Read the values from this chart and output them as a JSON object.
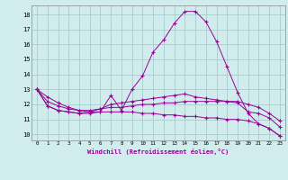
{
  "xlabel": "Windchill (Refroidissement éolien,°C)",
  "x_ticks": [
    0,
    1,
    2,
    3,
    4,
    5,
    6,
    7,
    8,
    9,
    10,
    11,
    12,
    13,
    14,
    15,
    16,
    17,
    18,
    19,
    20,
    21,
    22,
    23
  ],
  "line1": [
    13.0,
    11.9,
    11.6,
    11.5,
    11.4,
    11.4,
    11.5,
    12.6,
    11.6,
    13.0,
    13.9,
    15.5,
    16.3,
    17.4,
    18.2,
    18.2,
    17.5,
    16.2,
    14.5,
    12.8,
    11.4,
    10.7,
    10.4,
    9.9
  ],
  "line2": [
    13.0,
    11.9,
    11.6,
    11.5,
    11.4,
    11.5,
    11.7,
    12.0,
    12.1,
    12.2,
    12.3,
    12.4,
    12.5,
    12.6,
    12.7,
    12.5,
    12.4,
    12.3,
    12.2,
    12.1,
    11.5,
    11.4,
    11.1,
    10.5
  ],
  "line3": [
    13.0,
    12.2,
    11.9,
    11.7,
    11.6,
    11.6,
    11.7,
    11.8,
    11.8,
    11.9,
    12.0,
    12.0,
    12.1,
    12.1,
    12.2,
    12.2,
    12.2,
    12.2,
    12.2,
    12.2,
    12.0,
    11.8,
    11.4,
    10.9
  ],
  "line4": [
    13.0,
    12.5,
    12.1,
    11.8,
    11.6,
    11.5,
    11.5,
    11.5,
    11.5,
    11.5,
    11.4,
    11.4,
    11.3,
    11.3,
    11.2,
    11.2,
    11.1,
    11.1,
    11.0,
    11.0,
    10.9,
    10.7,
    10.4,
    9.9
  ],
  "color": "#990099",
  "bg_color": "#d0ecec",
  "ylim": [
    9.6,
    18.6
  ],
  "yticks": [
    10,
    11,
    12,
    13,
    14,
    15,
    16,
    17,
    18
  ],
  "grid_color": "#a0c8c8",
  "marker": "+"
}
